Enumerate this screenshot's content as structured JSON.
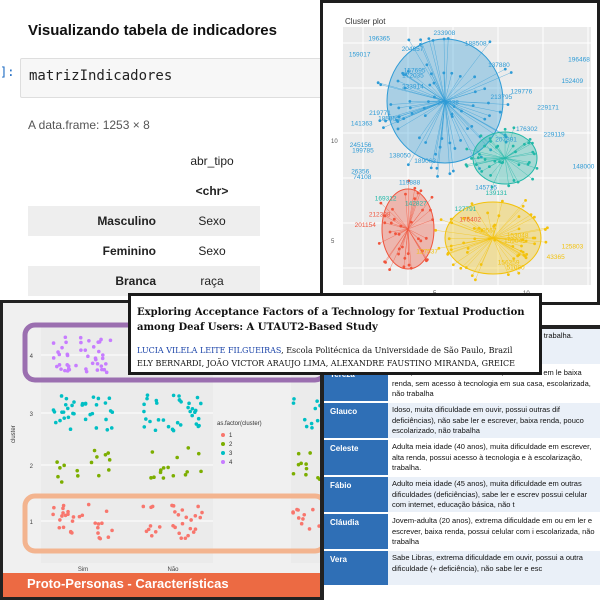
{
  "notebook": {
    "heading": "Visualizando tabela de indicadores",
    "prompt": "]:",
    "code": "matrizIndicadores",
    "frame_info": "A data.frame: 1253 × 8",
    "col_header": "abr_tipo",
    "col_type": "<chr>",
    "rows": [
      {
        "label": "Masculino",
        "value": "Sexo"
      },
      {
        "label": "Feminino",
        "value": "Sexo"
      },
      {
        "label": "Branca",
        "value": "raça"
      }
    ]
  },
  "cluster_plot": {
    "title": "Cluster plot",
    "labels": [
      "233908",
      "196365",
      "188508",
      "204657",
      "159017",
      "196468",
      "137880",
      "157695",
      "172035",
      "152409",
      "233914",
      "129776",
      "213795",
      "248038",
      "229171",
      "219771",
      "185355",
      "141363",
      "176302",
      "229119",
      "207891",
      "245156",
      "199785",
      "138050",
      "189063",
      "148000",
      "26356",
      "74108",
      "119888",
      "145715",
      "139131",
      "169312",
      "142827",
      "127791",
      "212398",
      "176402",
      "201154",
      "209567",
      "153048",
      "159041",
      "125803",
      "127537",
      "43365",
      "156259",
      "51080"
    ],
    "axis_ticks": [
      "5",
      "10",
      "5",
      "10"
    ],
    "colors": {
      "red": "#f0543c",
      "blue": "#2e9bd6",
      "teal": "#22b8a8",
      "yellow": "#f3c20c"
    }
  },
  "paper": {
    "title": "Exploring Acceptance Factors of a Technology for Textual Production among Deaf Users: A UTAUT2-Based Study",
    "first_author": "LUCIA VILELA LEITE FILGUEIRAS",
    "first_affiliation": ", Escola Politécnica da Universidade de São Paulo, Brazil",
    "other_authors": "ELY BERNARDI, JOÃO VICTOR ARAUJO LIMA, ALEXANDRE FAUSTINO MIRANDA, GREICE"
  },
  "dot_plot": {
    "y_label": "cluster",
    "x_label": "Ler_Escrever",
    "x_ticks": [
      "Sim",
      "Não"
    ],
    "legend_title": "as.factor(cluster)",
    "legend_items": [
      "1",
      "2",
      "3",
      "4"
    ],
    "colors": {
      "c1": "#f8766d",
      "c2": "#7cae00",
      "c3": "#00bfc4",
      "c4": "#c77cff"
    },
    "banner": "Proto-Personas - Características"
  },
  "personas": {
    "header_fill": "#2f6fb6",
    "rows": [
      {
        "name": "",
        "desc": "ade em ouvir, s tecnologia e à escolarização, trabalha."
      },
      {
        "name": "Tereza",
        "desc": "Idosa, muita dificuldade em ouvir, dificuldade em le baixa renda, sem acesso à tecnologia em sua casa, escolarizada, não trabalha"
      },
      {
        "name": "Glauco",
        "desc": "Idoso, muita dificuldade em ouvir, possui outras dif deficiências), não sabe ler e escrever, baixa renda, pouco escolarizado, não trabalha"
      },
      {
        "name": "Celeste",
        "desc": "Adulta meia idade (40 anos), muita dificuldade em escrever, alta renda, possui acesso à tecnologia e à escolarização, trabalha."
      },
      {
        "name": "Fábio",
        "desc": "Adulto meia idade (45 anos), muita dificuldade em outras dificuldades (deficiências), sabe ler e escrev possui celular com internet, educação básica, não t"
      },
      {
        "name": "Cláudia",
        "desc": "Jovem-adulta (20 anos), extrema dificuldade em ou em ler e escrever, baixa renda, possui celular com i escolarizada, não trabalha"
      },
      {
        "name": "Vera",
        "desc": "Sabe Libras, extrema dificuldade em ouvir, possui a outra dificuldade (+ deficiência), não sabe ler e esc"
      }
    ]
  }
}
